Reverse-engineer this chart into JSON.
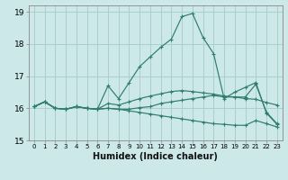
{
  "xlabel": "Humidex (Indice chaleur)",
  "ylabel": "",
  "xlim": [
    -0.5,
    23.5
  ],
  "ylim": [
    15,
    19.2
  ],
  "yticks": [
    15,
    16,
    17,
    18,
    19
  ],
  "xticks": [
    0,
    1,
    2,
    3,
    4,
    5,
    6,
    7,
    8,
    9,
    10,
    11,
    12,
    13,
    14,
    15,
    16,
    17,
    18,
    19,
    20,
    21,
    22,
    23
  ],
  "bg_color": "#cce8e8",
  "grid_color": "#aacece",
  "line_color": "#2e7d6e",
  "lines": [
    [
      16.05,
      16.2,
      16.0,
      15.97,
      16.05,
      16.0,
      15.97,
      16.7,
      16.3,
      16.8,
      17.3,
      17.6,
      17.9,
      18.15,
      18.85,
      18.95,
      18.2,
      17.7,
      16.3,
      16.5,
      16.65,
      16.8,
      15.85,
      15.5
    ],
    [
      16.05,
      16.2,
      16.0,
      15.97,
      16.05,
      16.0,
      15.97,
      16.15,
      16.1,
      16.2,
      16.3,
      16.38,
      16.45,
      16.52,
      16.55,
      16.52,
      16.48,
      16.44,
      16.38,
      16.35,
      16.3,
      16.28,
      16.18,
      16.1
    ],
    [
      16.05,
      16.2,
      16.0,
      15.97,
      16.05,
      16.0,
      15.97,
      16.0,
      15.97,
      15.92,
      15.87,
      15.82,
      15.77,
      15.72,
      15.67,
      15.62,
      15.57,
      15.52,
      15.5,
      15.47,
      15.47,
      15.62,
      15.52,
      15.42
    ],
    [
      16.05,
      16.2,
      16.0,
      15.97,
      16.05,
      16.0,
      15.97,
      16.0,
      15.97,
      15.97,
      16.02,
      16.05,
      16.15,
      16.2,
      16.25,
      16.3,
      16.35,
      16.4,
      16.35,
      16.35,
      16.35,
      16.75,
      15.88,
      15.52
    ]
  ]
}
